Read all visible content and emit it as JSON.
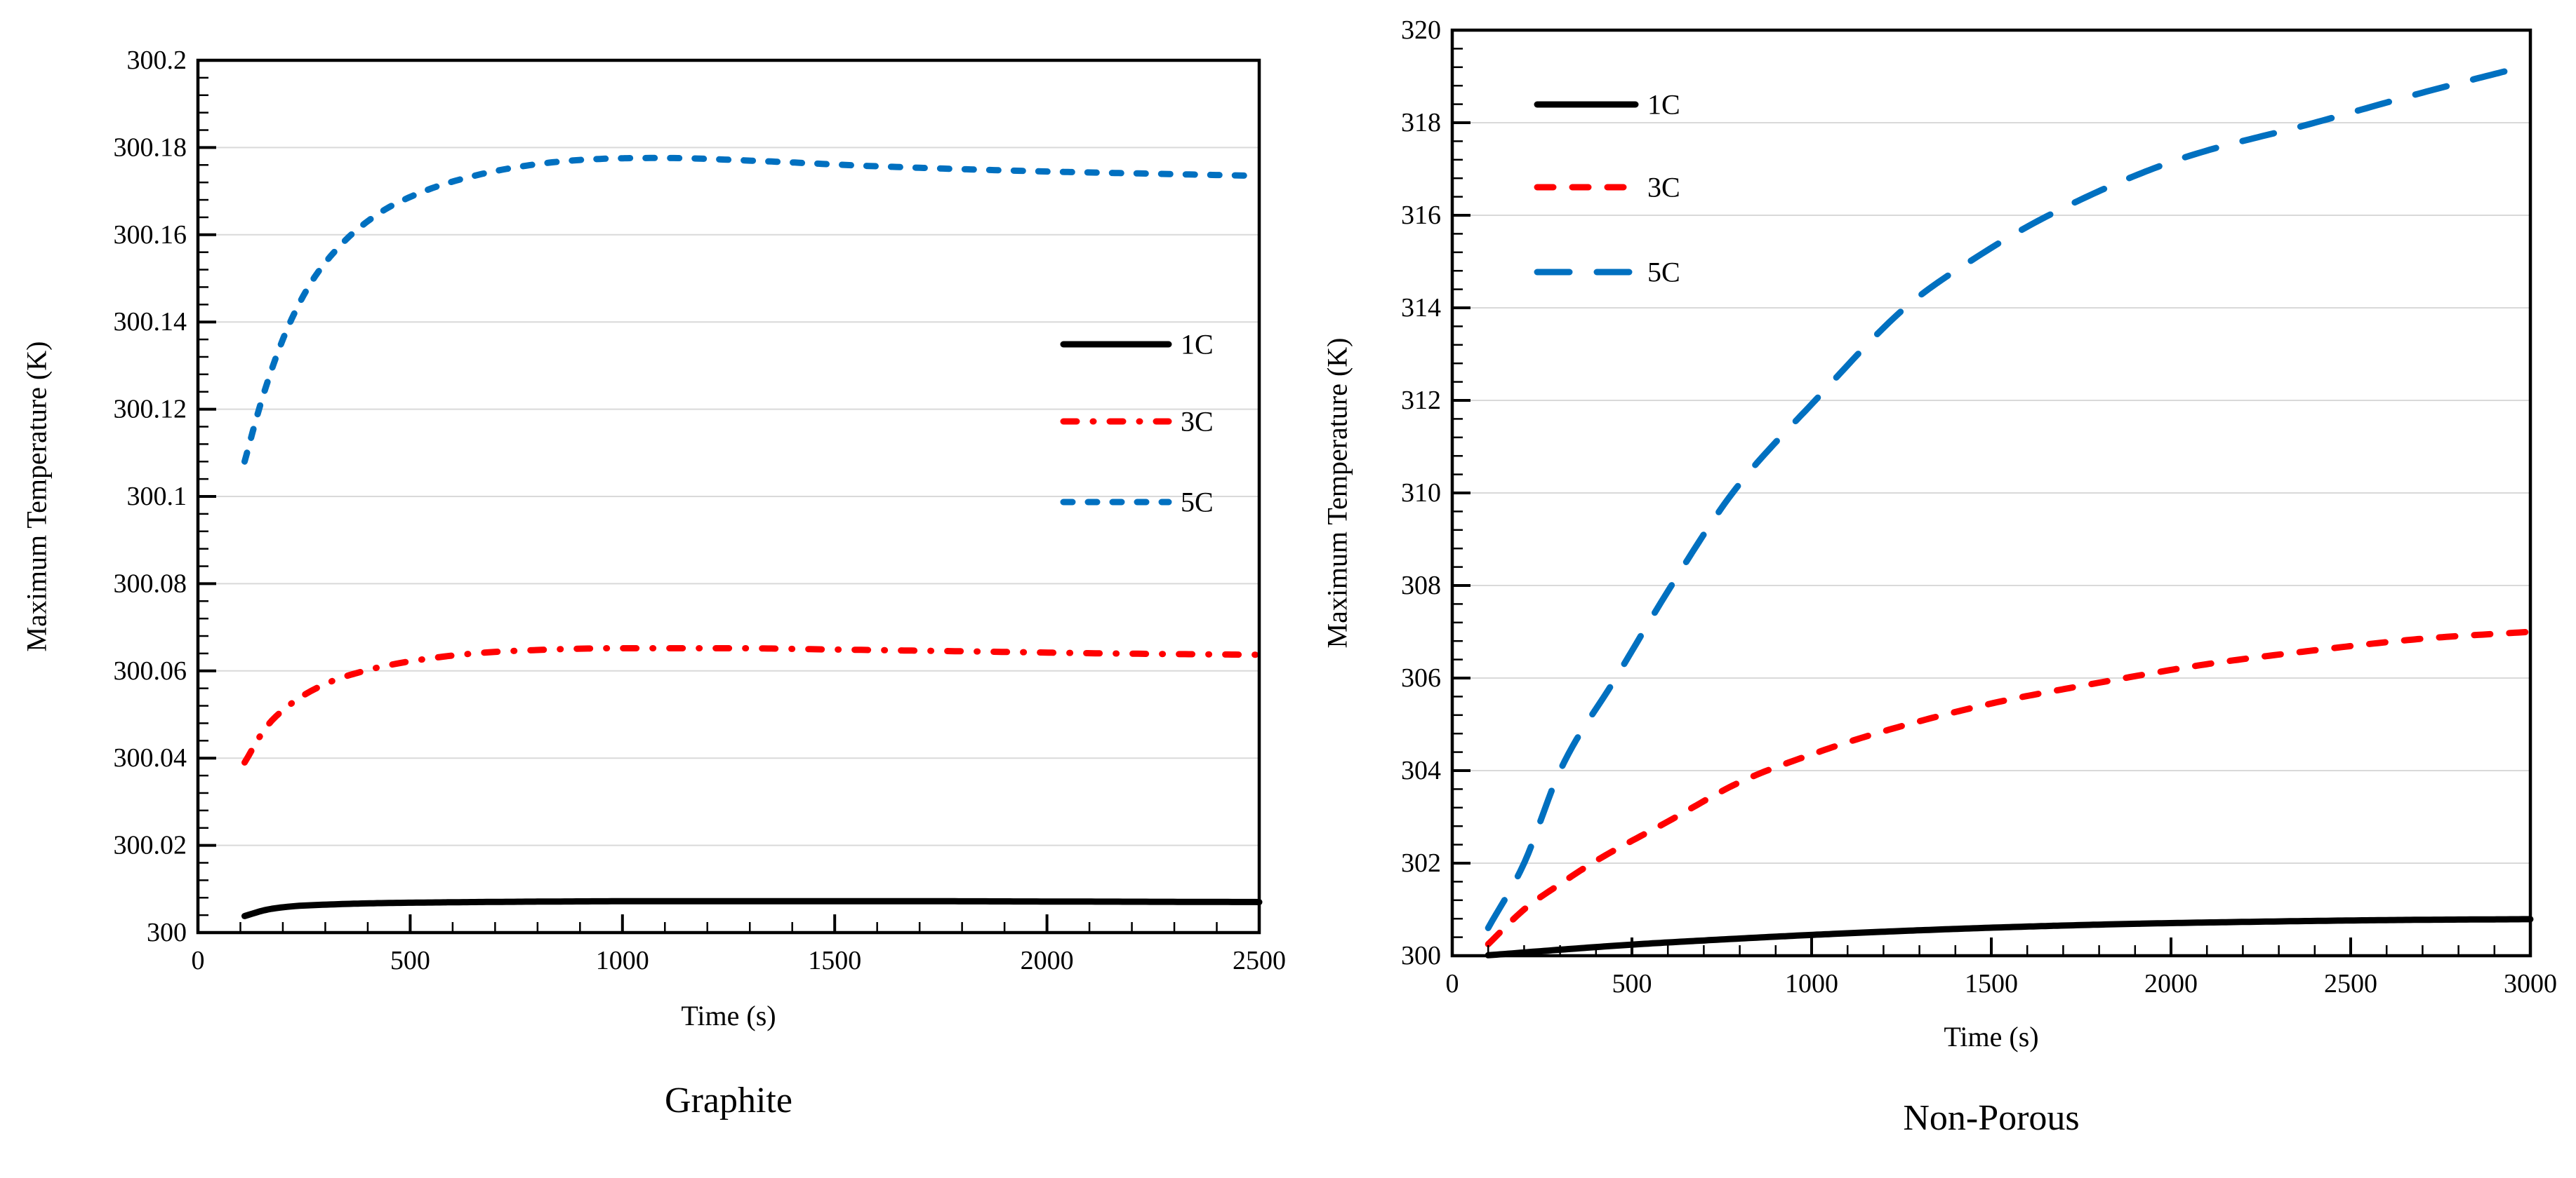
{
  "page": {
    "background": "#ffffff"
  },
  "chart_data": [
    {
      "type": "line",
      "panel": "left",
      "title": "Graphite",
      "xlabel": "Time (s)",
      "ylabel": "Maximum Temperature (K)",
      "xlim": [
        0,
        2500
      ],
      "ylim": [
        300,
        300.2
      ],
      "x_tick_values": [
        0,
        500,
        1000,
        1500,
        2000,
        2500
      ],
      "x_tick_labels": [
        "0",
        "500",
        "1000",
        "1500",
        "2000",
        "2500"
      ],
      "x_minor_step": 100,
      "y_tick_values": [
        300,
        300.02,
        300.04,
        300.06,
        300.08,
        300.1,
        300.12,
        300.14,
        300.16,
        300.18,
        300.2
      ],
      "y_tick_labels": [
        "300",
        "300.02",
        "300.04",
        "300.06",
        "300.08",
        "300.1",
        "300.12",
        "300.14",
        "300.16",
        "300.18",
        "300.2"
      ],
      "y_minor_step": 0.004,
      "grid": {
        "horizontal_majors": true,
        "color": "#D9D9D9"
      },
      "legend": {
        "position": "inside-right-middle",
        "entries": [
          "1C",
          "3C",
          "5C"
        ]
      },
      "series": [
        {
          "name": "1C",
          "color": "#000000",
          "style": "solid",
          "points": [
            [
              110,
              300.0038
            ],
            [
              160,
              300.0052
            ],
            [
              220,
              300.006
            ],
            [
              300,
              300.0064
            ],
            [
              400,
              300.0067
            ],
            [
              550,
              300.0069
            ],
            [
              800,
              300.0071
            ],
            [
              1100,
              300.0072
            ],
            [
              1600,
              300.0072
            ],
            [
              2100,
              300.0071
            ],
            [
              2500,
              300.007
            ]
          ]
        },
        {
          "name": "3C",
          "color": "#FF0000",
          "style": "dash-dot",
          "points": [
            [
              110,
              300.039
            ],
            [
              160,
              300.047
            ],
            [
              220,
              300.0525
            ],
            [
              300,
              300.057
            ],
            [
              400,
              300.0602
            ],
            [
              500,
              300.0622
            ],
            [
              650,
              300.064
            ],
            [
              800,
              300.0648
            ],
            [
              1000,
              300.0652
            ],
            [
              1250,
              300.0652
            ],
            [
              1500,
              300.0649
            ],
            [
              1800,
              300.0645
            ],
            [
              2150,
              300.064
            ],
            [
              2500,
              300.0637
            ]
          ]
        },
        {
          "name": "5C",
          "color": "#0070C0",
          "style": "short-dash",
          "points": [
            [
              110,
              300.108
            ],
            [
              150,
              300.122
            ],
            [
              200,
              300.136
            ],
            [
              260,
              300.148
            ],
            [
              330,
              300.157
            ],
            [
              420,
              300.1645
            ],
            [
              520,
              300.1695
            ],
            [
              650,
              300.1735
            ],
            [
              800,
              300.1762
            ],
            [
              950,
              300.1774
            ],
            [
              1100,
              300.1776
            ],
            [
              1300,
              300.177
            ],
            [
              1600,
              300.1757
            ],
            [
              2000,
              300.1745
            ],
            [
              2250,
              300.174
            ],
            [
              2500,
              300.1735
            ]
          ]
        }
      ]
    },
    {
      "type": "line",
      "panel": "right",
      "title": "Non-Porous",
      "xlabel": "Time (s)",
      "ylabel": "Maximum Temperature (K)",
      "xlim": [
        0,
        3000
      ],
      "ylim": [
        300,
        320
      ],
      "x_tick_values": [
        0,
        500,
        1000,
        1500,
        2000,
        2500,
        3000
      ],
      "x_tick_labels": [
        "0",
        "500",
        "1000",
        "1500",
        "2000",
        "2500",
        "3000"
      ],
      "x_minor_step": 100,
      "y_tick_values": [
        300,
        302,
        304,
        306,
        308,
        310,
        312,
        314,
        316,
        318,
        320
      ],
      "y_tick_labels": [
        "300",
        "302",
        "304",
        "306",
        "308",
        "310",
        "312",
        "314",
        "316",
        "318",
        "320"
      ],
      "y_minor_step": 0.4,
      "grid": {
        "horizontal_majors": true,
        "color": "#D9D9D9"
      },
      "legend": {
        "position": "inside-left-top",
        "entries": [
          "1C",
          "3C",
          "5C"
        ]
      },
      "series": [
        {
          "name": "1C",
          "color": "#000000",
          "style": "solid",
          "points": [
            [
              100,
              300.01
            ],
            [
              300,
              300.13
            ],
            [
              500,
              300.24
            ],
            [
              700,
              300.33
            ],
            [
              1000,
              300.45
            ],
            [
              1300,
              300.55
            ],
            [
              1600,
              300.63
            ],
            [
              1900,
              300.69
            ],
            [
              2200,
              300.73
            ],
            [
              2600,
              300.77
            ],
            [
              3000,
              300.79
            ]
          ]
        },
        {
          "name": "3C",
          "color": "#FF0000",
          "style": "dash",
          "points": [
            [
              100,
              300.25
            ],
            [
              200,
              301.0
            ],
            [
              300,
              301.55
            ],
            [
              400,
              302.05
            ],
            [
              600,
              302.9
            ],
            [
              800,
              303.75
            ],
            [
              1000,
              304.35
            ],
            [
              1200,
              304.85
            ],
            [
              1500,
              305.45
            ],
            [
              1800,
              305.9
            ],
            [
              2100,
              306.3
            ],
            [
              2400,
              306.6
            ],
            [
              2700,
              306.85
            ],
            [
              3000,
              307.0
            ]
          ]
        },
        {
          "name": "5C",
          "color": "#0070C0",
          "style": "long-dash",
          "points": [
            [
              100,
              300.6
            ],
            [
              200,
              302.0
            ],
            [
              300,
              304.0
            ],
            [
              455,
              306.0
            ],
            [
              610,
              308.0
            ],
            [
              780,
              310.0
            ],
            [
              1010,
              312.0
            ],
            [
              1260,
              314.0
            ],
            [
              1460,
              315.1
            ],
            [
              1660,
              316.0
            ],
            [
              2000,
              317.15
            ],
            [
              2400,
              318.0
            ],
            [
              2700,
              318.65
            ],
            [
              3000,
              319.25
            ]
          ]
        }
      ]
    }
  ]
}
